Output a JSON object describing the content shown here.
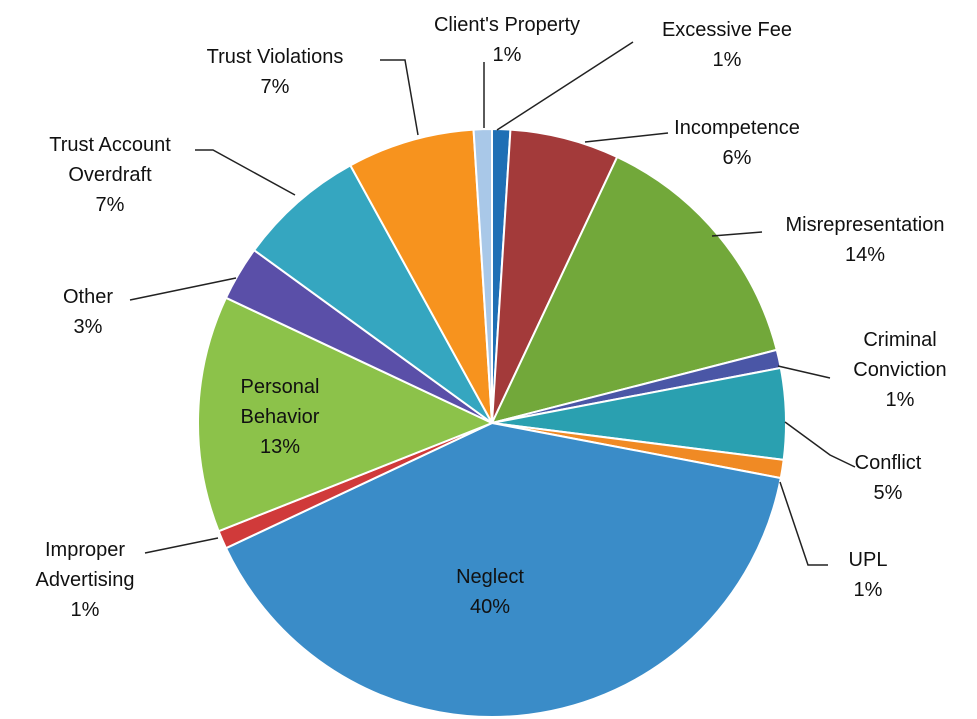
{
  "chart_data": {
    "type": "pie",
    "categories": [
      "Excessive Fee",
      "Incompetence",
      "Misrepresentation",
      "Criminal Conviction",
      "Conflict",
      "UPL",
      "Neglect",
      "Improper Advertising",
      "Personal Behavior",
      "Other",
      "Trust Account Overdraft",
      "Trust Violations",
      "Client's Property"
    ],
    "values": [
      1,
      6,
      14,
      1,
      5,
      1,
      40,
      1,
      13,
      3,
      7,
      7,
      1
    ],
    "value_labels": [
      "1%",
      "6%",
      "14%",
      "1%",
      "5%",
      "1%",
      "40%",
      "1%",
      "13%",
      "3%",
      "7%",
      "7%",
      "1%"
    ],
    "colors": [
      "#1f6fb5",
      "#a33a3a",
      "#72a83a",
      "#4a56a6",
      "#2aa0b0",
      "#f08a24",
      "#3a8cc8",
      "#d03a3a",
      "#8cc24a",
      "#5a4fa8",
      "#35a6c0",
      "#f7931e",
      "#a9c8e8"
    ]
  }
}
